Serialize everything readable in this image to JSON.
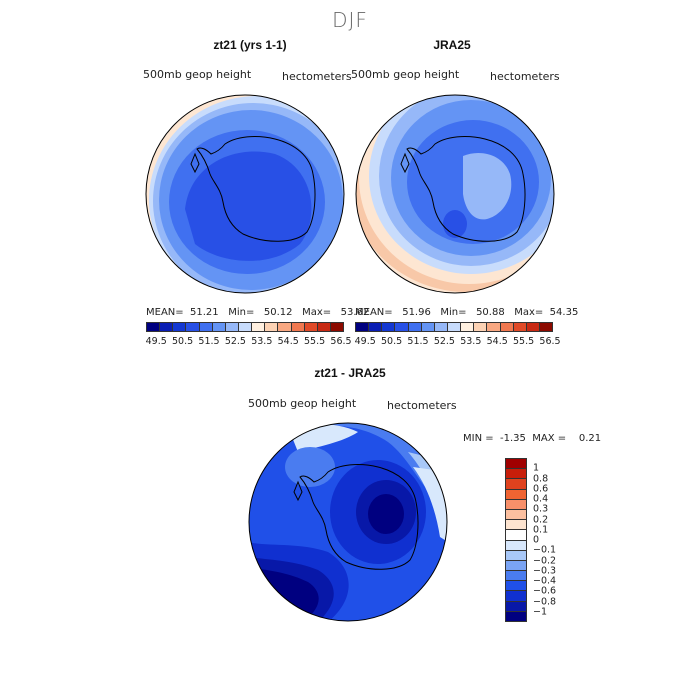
{
  "title": "DJF",
  "panels": {
    "model": {
      "title": "zt21 (yrs 1-1)",
      "subtitle_left": "500mb geop height",
      "subtitle_right": "hectometers",
      "mean_label": "MEAN=",
      "mean": "51.21",
      "min_label": "Min=",
      "min": "50.12",
      "max_label": "Max=",
      "max": "53.62"
    },
    "obs": {
      "title": "JRA25",
      "subtitle_left": "500mb geop height",
      "subtitle_right": "hectometers",
      "mean_label": "MEAN=",
      "mean": "51.96",
      "min_label": "Min=",
      "min": "50.88",
      "max_label": "Max=",
      "max": "54.35"
    },
    "diff": {
      "title": "zt21 - JRA25",
      "subtitle_left": "500mb geop height",
      "subtitle_right": "hectometers",
      "min_label": "MIN =",
      "min": "-1.35",
      "max_label": "MAX =",
      "max": "0.21"
    }
  },
  "colorbar_main": {
    "colors": [
      "#000080",
      "#0a1eb4",
      "#1438d2",
      "#2850e6",
      "#4070f0",
      "#6494f4",
      "#96b8f8",
      "#c8dcfc",
      "#fff0e0",
      "#fcd2b4",
      "#f8a882",
      "#f07850",
      "#e04a28",
      "#c82a14",
      "#8c0a00"
    ],
    "labels": [
      "49.5",
      "50.5",
      "51.5",
      "52.5",
      "53.5",
      "54.5",
      "55.5",
      "56.5"
    ]
  },
  "colorbar_diff": {
    "colors": [
      "#a00000",
      "#c81e0a",
      "#e0421e",
      "#f06432",
      "#f8906a",
      "#fcc0a0",
      "#fde4d0",
      "#ffffff",
      "#d8e8fc",
      "#a8c8f8",
      "#7aa4f4",
      "#4a7cf0",
      "#2050e8",
      "#1030d0",
      "#0818a8",
      "#000080"
    ],
    "labels": [
      "1",
      "0.8",
      "0.6",
      "0.4",
      "0.3",
      "0.2",
      "0.1",
      "0",
      "−0.1",
      "−0.2",
      "−0.3",
      "−0.4",
      "−0.6",
      "−0.8",
      "−1"
    ]
  },
  "chart_data": {
    "type": "heatmap",
    "title": "DJF",
    "variable": "500mb geop height",
    "units": "hectometers",
    "projection": "south polar stereographic",
    "maps": [
      {
        "name": "zt21 (yrs 1-1)",
        "mean": 51.21,
        "min": 50.12,
        "max": 53.62
      },
      {
        "name": "JRA25",
        "mean": 51.96,
        "min": 50.88,
        "max": 54.35
      },
      {
        "name": "zt21 - JRA25",
        "min": -1.35,
        "max": 0.21
      }
    ],
    "colorbar_levels": [
      49.5,
      50.5,
      51.5,
      52.5,
      53.5,
      54.5,
      55.5,
      56.5
    ],
    "diff_levels": [
      1,
      0.8,
      0.6,
      0.4,
      0.3,
      0.2,
      0.1,
      0,
      -0.1,
      -0.2,
      -0.3,
      -0.4,
      -0.6,
      -0.8,
      -1
    ]
  }
}
